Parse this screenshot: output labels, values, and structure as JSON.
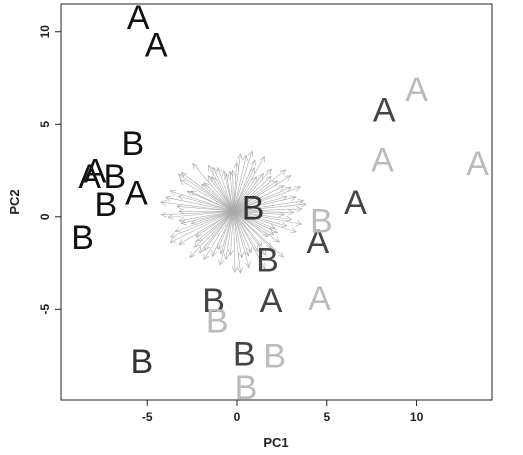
{
  "chart_data": {
    "type": "scatter",
    "title": "",
    "xlabel": "PC1",
    "ylabel": "PC2",
    "xlim": [
      -9.8,
      14.2
    ],
    "ylim": [
      -9.9,
      11.5
    ],
    "xticks": [
      -5,
      0,
      5,
      10
    ],
    "yticks": [
      -5,
      0,
      5,
      10
    ],
    "grid": false,
    "points": [
      {
        "label": "A",
        "x": -5.5,
        "y": 10.8,
        "color": "#111111"
      },
      {
        "label": "A",
        "x": -4.5,
        "y": 9.3,
        "color": "#111111"
      },
      {
        "label": "B",
        "x": -5.8,
        "y": 4.0,
        "color": "#111111"
      },
      {
        "label": "A",
        "x": -7.9,
        "y": 2.5,
        "color": "#111111"
      },
      {
        "label": "A",
        "x": -8.2,
        "y": 2.2,
        "color": "#111111"
      },
      {
        "label": "B",
        "x": -6.8,
        "y": 2.2,
        "color": "#111111"
      },
      {
        "label": "A",
        "x": -5.6,
        "y": 1.3,
        "color": "#111111"
      },
      {
        "label": "B",
        "x": -7.3,
        "y": 0.7,
        "color": "#111111"
      },
      {
        "label": "B",
        "x": -8.6,
        "y": -1.1,
        "color": "#111111"
      },
      {
        "label": "B",
        "x": -5.3,
        "y": -7.8,
        "color": "#333333"
      },
      {
        "label": "B",
        "x": 0.9,
        "y": 0.5,
        "color": "#333333"
      },
      {
        "label": "B",
        "x": 1.7,
        "y": -2.3,
        "color": "#444444"
      },
      {
        "label": "B",
        "x": -1.3,
        "y": -4.5,
        "color": "#444444"
      },
      {
        "label": "A",
        "x": 1.9,
        "y": -4.5,
        "color": "#444444"
      },
      {
        "label": "B",
        "x": 0.4,
        "y": -7.4,
        "color": "#444444"
      },
      {
        "label": "A",
        "x": 4.5,
        "y": -1.3,
        "color": "#444444"
      },
      {
        "label": "A",
        "x": 6.6,
        "y": 0.8,
        "color": "#444444"
      },
      {
        "label": "A",
        "x": 8.2,
        "y": 5.8,
        "color": "#444444"
      },
      {
        "label": "B",
        "x": -1.1,
        "y": -5.6,
        "color": "#bbbbbb"
      },
      {
        "label": "B",
        "x": 2.1,
        "y": -7.5,
        "color": "#bbbbbb"
      },
      {
        "label": "B",
        "x": 0.5,
        "y": -9.2,
        "color": "#bbbbbb"
      },
      {
        "label": "B",
        "x": 4.7,
        "y": -0.2,
        "color": "#bbbbbb"
      },
      {
        "label": "A",
        "x": 4.6,
        "y": -4.4,
        "color": "#bbbbbb"
      },
      {
        "label": "A",
        "x": 8.1,
        "y": 3.1,
        "color": "#bbbbbb"
      },
      {
        "label": "A",
        "x": 10.0,
        "y": 6.9,
        "color": "#bbbbbb"
      },
      {
        "label": "A",
        "x": 13.4,
        "y": 2.9,
        "color": "#bbbbbb"
      }
    ],
    "star": {
      "center_x": -0.2,
      "center_y": 0.3,
      "color": "#aaaaaa"
    }
  }
}
